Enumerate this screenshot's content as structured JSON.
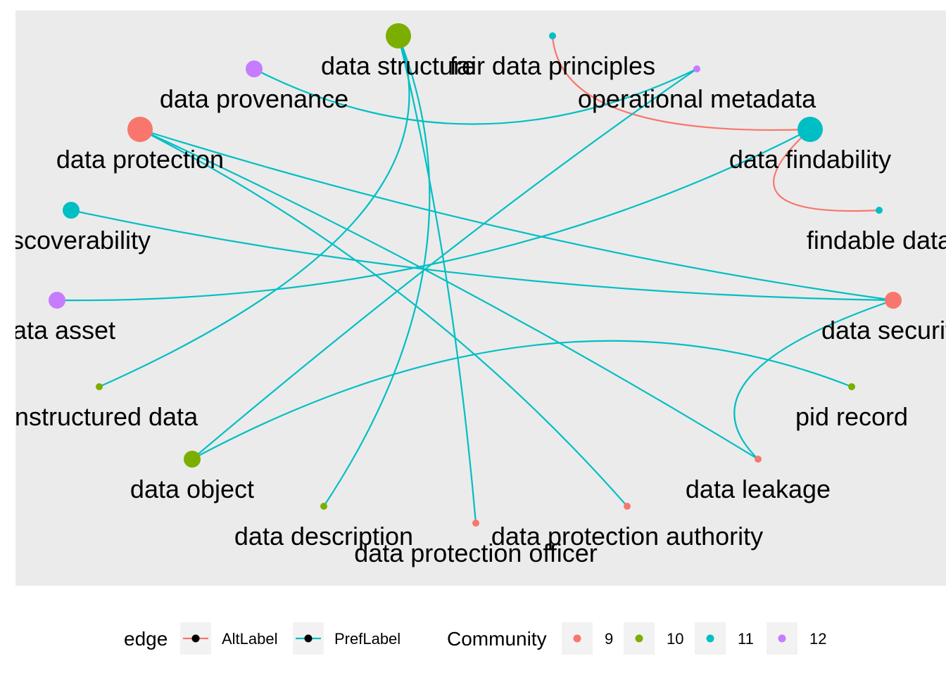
{
  "colors": {
    "panel": "#EBEBEB",
    "key_bg": "#F2F2F2",
    "alt_edge": "#F8766D",
    "pref_edge": "#00BFC4",
    "community": {
      "9": "#F8766D",
      "10": "#7CAE00",
      "11": "#00BFC4",
      "12": "#C77CFF"
    }
  },
  "nodes": [
    {
      "id": "data structure",
      "label": "data structure",
      "community": "10",
      "size": "large"
    },
    {
      "id": "fair data principles",
      "label": "fair data principles",
      "community": "11",
      "size": "small"
    },
    {
      "id": "operational metadata",
      "label": "operational metadata",
      "community": "12",
      "size": "small"
    },
    {
      "id": "data findability",
      "label": "data findability",
      "community": "11",
      "size": "large"
    },
    {
      "id": "findable data",
      "label": "findable data",
      "community": "11",
      "size": "small"
    },
    {
      "id": "data security",
      "label": "data security",
      "community": "9",
      "size": "medium"
    },
    {
      "id": "pid record",
      "label": "pid record",
      "community": "10",
      "size": "small"
    },
    {
      "id": "data leakage",
      "label": "data leakage",
      "community": "9",
      "size": "small"
    },
    {
      "id": "data protection authority",
      "label": "data protection authority",
      "community": "9",
      "size": "small"
    },
    {
      "id": "data protection officer",
      "label": "data protection officer",
      "community": "9",
      "size": "small"
    },
    {
      "id": "data description",
      "label": "data description",
      "community": "10",
      "size": "small"
    },
    {
      "id": "data object",
      "label": "data object",
      "community": "10",
      "size": "medium"
    },
    {
      "id": "unstructured data",
      "label": "unstructured data",
      "community": "10",
      "size": "small"
    },
    {
      "id": "data asset",
      "label": "data asset",
      "community": "12",
      "size": "medium"
    },
    {
      "id": "discoverability",
      "label": "discoverability",
      "community": "11",
      "size": "medium"
    },
    {
      "id": "data protection",
      "label": "data protection",
      "community": "9",
      "size": "large"
    },
    {
      "id": "data provenance",
      "label": "data provenance",
      "community": "12",
      "size": "medium"
    }
  ],
  "edges": [
    {
      "from": "fair data principles",
      "to": "data findability",
      "type": "AltLabel"
    },
    {
      "from": "data findability",
      "to": "findable data",
      "type": "AltLabel"
    },
    {
      "from": "data provenance",
      "to": "operational metadata",
      "type": "PrefLabel"
    },
    {
      "from": "data structure",
      "to": "unstructured data",
      "type": "PrefLabel"
    },
    {
      "from": "data structure",
      "to": "data description",
      "type": "PrefLabel"
    },
    {
      "from": "data structure",
      "to": "data protection officer",
      "type": "PrefLabel"
    },
    {
      "from": "operational metadata",
      "to": "data object",
      "type": "PrefLabel"
    },
    {
      "from": "data findability",
      "to": "data asset",
      "type": "PrefLabel"
    },
    {
      "from": "data protection",
      "to": "data protection authority",
      "type": "PrefLabel"
    },
    {
      "from": "data protection",
      "to": "data leakage",
      "type": "PrefLabel"
    },
    {
      "from": "data protection",
      "to": "data security",
      "type": "PrefLabel"
    },
    {
      "from": "discoverability",
      "to": "data security",
      "type": "PrefLabel"
    },
    {
      "from": "data security",
      "to": "data leakage",
      "type": "PrefLabel"
    },
    {
      "from": "data object",
      "to": "pid record",
      "type": "PrefLabel"
    }
  ],
  "legend": {
    "edge_title": "edge",
    "edge_items": [
      {
        "label": "AltLabel",
        "type": "AltLabel"
      },
      {
        "label": "PrefLabel",
        "type": "PrefLabel"
      }
    ],
    "community_title": "Community",
    "community_items": [
      {
        "label": "9",
        "community": "9"
      },
      {
        "label": "10",
        "community": "10"
      },
      {
        "label": "11",
        "community": "11"
      },
      {
        "label": "12",
        "community": "12"
      }
    ]
  }
}
